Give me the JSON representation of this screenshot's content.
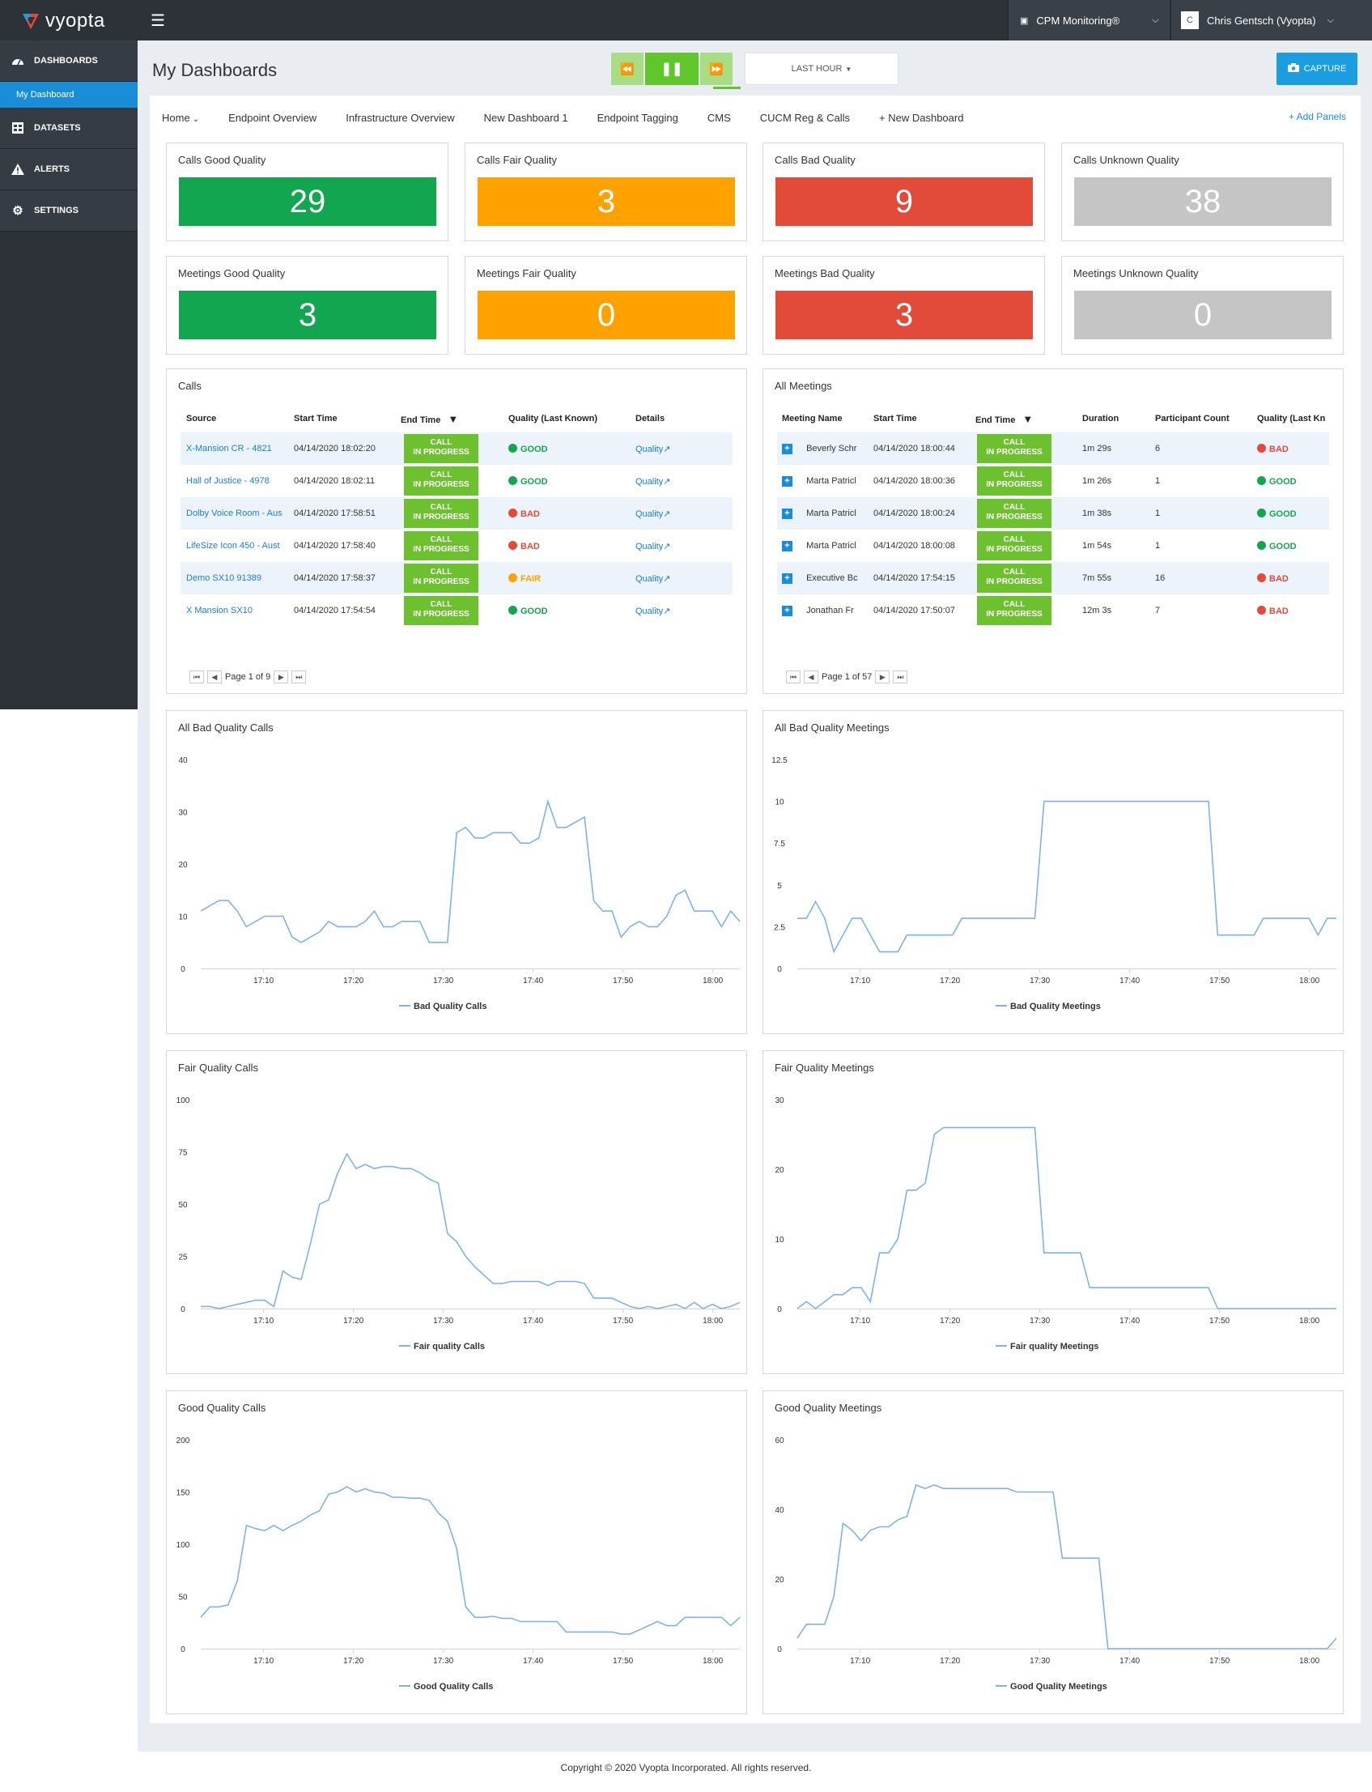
{
  "app": {
    "brand": "vyopta"
  },
  "header": {
    "monitor_label": "CPM Monitoring®",
    "user_initial": "C",
    "user_name": "Chris Gentsch (Vyopta)"
  },
  "sidebar": {
    "items": [
      {
        "label": "DASHBOARDS",
        "icon": "gauge-icon"
      },
      {
        "label": "My Dashboard"
      },
      {
        "label": "DATASETS",
        "icon": "dataset-icon"
      },
      {
        "label": "ALERTS",
        "icon": "warning-icon"
      },
      {
        "label": "SETTINGS",
        "icon": "gear-icon"
      }
    ]
  },
  "page": {
    "title": "My Dashboards",
    "time_range": "LAST HOUR",
    "capture_label": "CAPTURE"
  },
  "tabs": [
    "Home",
    "Endpoint Overview",
    "Infrastructure Overview",
    "New Dashboard 1",
    "Endpoint Tagging",
    "CMS",
    "CUCM Reg & Calls",
    "+ New Dashboard"
  ],
  "add_panels": "+ Add Panels",
  "colors": {
    "good": "#13a650",
    "fair": "#ffa200",
    "bad": "#e24b3a",
    "unknown": "#c5c5c5",
    "line": "#7db3e8",
    "accent": "#1a9ee0"
  },
  "stats": [
    {
      "title": "Calls Good Quality",
      "value": "29",
      "status": "good"
    },
    {
      "title": "Calls Fair Quality",
      "value": "3",
      "status": "fair"
    },
    {
      "title": "Calls Bad Quality",
      "value": "9",
      "status": "bad"
    },
    {
      "title": "Calls Unknown Quality",
      "value": "38",
      "status": "unknown"
    },
    {
      "title": "Meetings Good Quality",
      "value": "3",
      "status": "good"
    },
    {
      "title": "Meetings Fair Quality",
      "value": "0",
      "status": "fair"
    },
    {
      "title": "Meetings Bad Quality",
      "value": "3",
      "status": "bad"
    },
    {
      "title": "Meetings Unknown Quality",
      "value": "0",
      "status": "unknown"
    }
  ],
  "calls": {
    "title": "Calls",
    "columns": [
      "Source",
      "Start Time",
      "End Time",
      "Quality (Last Known)",
      "Details"
    ],
    "rows": [
      {
        "source": "X-Mansion CR - 4821",
        "start": "04/14/2020 18:02:20",
        "end": "CALL IN PROGRESS",
        "quality": "GOOD",
        "details": "Quality"
      },
      {
        "source": "Hall of Justice - 4978",
        "start": "04/14/2020 18:02:11",
        "end": "CALL IN PROGRESS",
        "quality": "GOOD",
        "details": "Quality"
      },
      {
        "source": "Dolby Voice Room - Aus",
        "start": "04/14/2020 17:58:51",
        "end": "CALL IN PROGRESS",
        "quality": "BAD",
        "details": "Quality"
      },
      {
        "source": "LifeSize Icon 450 - Aust",
        "start": "04/14/2020 17:58:40",
        "end": "CALL IN PROGRESS",
        "quality": "BAD",
        "details": "Quality"
      },
      {
        "source": "Demo SX10 91389",
        "start": "04/14/2020 17:58:37",
        "end": "CALL IN PROGRESS",
        "quality": "FAIR",
        "details": "Quality"
      },
      {
        "source": "X Mansion SX10",
        "start": "04/14/2020 17:54:54",
        "end": "CALL IN PROGRESS",
        "quality": "GOOD",
        "details": "Quality"
      }
    ],
    "page_text": "Page 1 of 9"
  },
  "meetings": {
    "title": "All Meetings",
    "columns": [
      "Meeting Name",
      "Start Time",
      "End Time",
      "Duration",
      "Participant Count",
      "Quality (Last Kn"
    ],
    "rows": [
      {
        "name": "Beverly Schr",
        "start": "04/14/2020 18:00:44",
        "end": "CALL IN PROGRESS",
        "duration": "1m 29s",
        "count": "6",
        "quality": "BAD"
      },
      {
        "name": "Marta Patricl",
        "start": "04/14/2020 18:00:36",
        "end": "CALL IN PROGRESS",
        "duration": "1m 26s",
        "count": "1",
        "quality": "GOOD"
      },
      {
        "name": "Marta Patricl",
        "start": "04/14/2020 18:00:24",
        "end": "CALL IN PROGRESS",
        "duration": "1m 38s",
        "count": "1",
        "quality": "GOOD"
      },
      {
        "name": "Marta Patricl",
        "start": "04/14/2020 18:00:08",
        "end": "CALL IN PROGRESS",
        "duration": "1m 54s",
        "count": "1",
        "quality": "GOOD"
      },
      {
        "name": "Executive Bc",
        "start": "04/14/2020 17:54:15",
        "end": "CALL IN PROGRESS",
        "duration": "7m 55s",
        "count": "16",
        "quality": "BAD"
      },
      {
        "name": "Jonathan Fr",
        "start": "04/14/2020 17:50:07",
        "end": "CALL IN PROGRESS",
        "duration": "12m 3s",
        "count": "7",
        "quality": "BAD"
      }
    ],
    "page_text": "Page 1 of 57"
  },
  "chart_data": [
    {
      "type": "line",
      "title": "All Bad Quality Calls",
      "ylim": [
        0,
        40
      ],
      "yticks": [
        0,
        10,
        20,
        30,
        40
      ],
      "xticks": [
        "17:10",
        "17:20",
        "17:30",
        "17:40",
        "17:50",
        "18:00"
      ],
      "xrange": [
        17.05,
        18.05
      ],
      "series": [
        {
          "name": "Bad Quality Calls",
          "values": [
            11,
            12,
            13,
            13,
            11,
            8,
            9,
            10,
            10,
            10,
            6,
            5,
            6,
            7,
            9,
            8,
            8,
            8,
            9,
            11,
            8,
            8,
            9,
            9,
            9,
            5,
            5,
            5,
            26,
            27,
            25,
            25,
            26,
            26,
            26,
            24,
            24,
            25,
            32,
            27,
            27,
            28,
            29,
            13,
            11,
            11,
            6,
            8,
            9,
            8,
            8,
            10,
            14,
            15,
            11,
            11,
            11,
            8,
            11,
            9
          ]
        }
      ]
    },
    {
      "type": "line",
      "title": "All Bad Quality Meetings",
      "ylim": [
        0,
        12.5
      ],
      "yticks": [
        0,
        2.5,
        5,
        7.5,
        10,
        12.5
      ],
      "xticks": [
        "17:10",
        "17:20",
        "17:30",
        "17:40",
        "17:50",
        "18:00"
      ],
      "xrange": [
        17.05,
        18.05
      ],
      "series": [
        {
          "name": "Bad Quality Meetings",
          "values": [
            3,
            3,
            4,
            3,
            1,
            2,
            3,
            3,
            2,
            1,
            1,
            1,
            2,
            2,
            2,
            2,
            2,
            2,
            3,
            3,
            3,
            3,
            3,
            3,
            3,
            3,
            3,
            10,
            10,
            10,
            10,
            10,
            10,
            10,
            10,
            10,
            10,
            10,
            10,
            10,
            10,
            10,
            10,
            10,
            10,
            10,
            2,
            2,
            2,
            2,
            2,
            3,
            3,
            3,
            3,
            3,
            3,
            2,
            3,
            3
          ]
        }
      ]
    },
    {
      "type": "line",
      "title": "Fair Quality Calls",
      "ylim": [
        0,
        100
      ],
      "yticks": [
        0,
        25,
        50,
        75,
        100
      ],
      "xticks": [
        "17:10",
        "17:20",
        "17:30",
        "17:40",
        "17:50",
        "18:00"
      ],
      "xrange": [
        17.05,
        18.05
      ],
      "series": [
        {
          "name": "Fair quality Calls",
          "values": [
            1,
            1,
            0,
            1,
            2,
            3,
            4,
            4,
            1,
            18,
            15,
            14,
            31,
            50,
            52,
            65,
            74,
            67,
            69,
            67,
            68,
            68,
            67,
            67,
            65,
            62,
            60,
            36,
            32,
            25,
            20,
            16,
            12,
            12,
            13,
            13,
            13,
            13,
            11,
            13,
            13,
            13,
            12,
            5,
            5,
            5,
            3,
            1,
            0,
            1,
            0,
            1,
            2,
            0,
            3,
            0,
            2,
            0,
            1,
            3
          ]
        }
      ]
    },
    {
      "type": "line",
      "title": "Fair Quality Meetings",
      "ylim": [
        0,
        30
      ],
      "yticks": [
        0,
        10,
        20,
        30
      ],
      "xticks": [
        "17:10",
        "17:20",
        "17:30",
        "17:40",
        "17:50",
        "18:00"
      ],
      "xrange": [
        17.05,
        18.05
      ],
      "series": [
        {
          "name": "Fair quality Meetings",
          "values": [
            0,
            1,
            0,
            1,
            2,
            2,
            3,
            3,
            1,
            8,
            8,
            10,
            17,
            17,
            18,
            25,
            26,
            26,
            26,
            26,
            26,
            26,
            26,
            26,
            26,
            26,
            26,
            8,
            8,
            8,
            8,
            8,
            3,
            3,
            3,
            3,
            3,
            3,
            3,
            3,
            3,
            3,
            3,
            3,
            3,
            3,
            0,
            0,
            0,
            0,
            0,
            0,
            0,
            0,
            0,
            0,
            0,
            0,
            0,
            0
          ]
        }
      ]
    },
    {
      "type": "line",
      "title": "Good Quality Calls",
      "ylim": [
        0,
        200
      ],
      "yticks": [
        0,
        50,
        100,
        150,
        200
      ],
      "xticks": [
        "17:10",
        "17:20",
        "17:30",
        "17:40",
        "17:50",
        "18:00"
      ],
      "xrange": [
        17.05,
        18.05
      ],
      "series": [
        {
          "name": "Good Quality Calls",
          "values": [
            30,
            40,
            40,
            42,
            65,
            118,
            115,
            113,
            118,
            113,
            118,
            122,
            128,
            132,
            148,
            150,
            155,
            150,
            153,
            150,
            149,
            145,
            145,
            144,
            144,
            142,
            130,
            122,
            96,
            40,
            30,
            30,
            31,
            29,
            29,
            26,
            26,
            26,
            26,
            26,
            16,
            16,
            16,
            16,
            16,
            16,
            14,
            14,
            18,
            22,
            26,
            22,
            22,
            30,
            30,
            30,
            30,
            30,
            22,
            30
          ]
        }
      ]
    },
    {
      "type": "line",
      "title": "Good Quality Meetings",
      "ylim": [
        0,
        60
      ],
      "yticks": [
        0,
        20,
        40,
        60
      ],
      "xticks": [
        "17:10",
        "17:20",
        "17:30",
        "17:40",
        "17:50",
        "18:00"
      ],
      "xrange": [
        17.05,
        18.05
      ],
      "series": [
        {
          "name": "Good Quality Meetings",
          "values": [
            3,
            7,
            7,
            7,
            15,
            36,
            34,
            31,
            34,
            35,
            35,
            37,
            38,
            47,
            46,
            47,
            46,
            46,
            46,
            46,
            46,
            46,
            46,
            46,
            45,
            45,
            45,
            45,
            45,
            26,
            26,
            26,
            26,
            26,
            0,
            0,
            0,
            0,
            0,
            0,
            0,
            0,
            0,
            0,
            0,
            0,
            0,
            0,
            0,
            0,
            0,
            0,
            0,
            0,
            0,
            0,
            0,
            0,
            0,
            3
          ]
        }
      ]
    }
  ],
  "footer": "Copyright © 2020 Vyopta Incorporated. All rights reserved."
}
